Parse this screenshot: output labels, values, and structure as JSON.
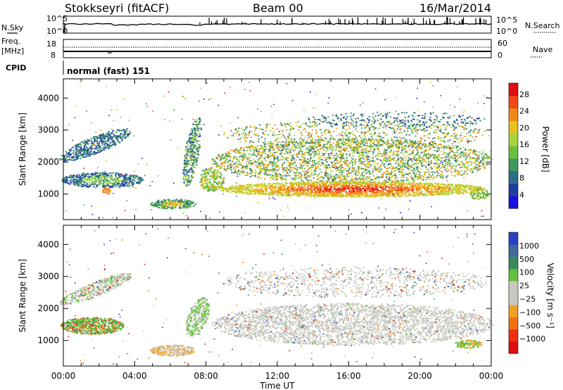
{
  "header": {
    "station": "Stokkseyri (fitACF)",
    "beam": "Beam 00",
    "date": "16/Mar/2014"
  },
  "strips": {
    "nsky": {
      "label": "N.Sky",
      "left_ticks": [
        "10^5",
        "10^0"
      ],
      "right_ticks": [
        "10^5",
        "10^0"
      ],
      "right_label": "N.Search"
    },
    "freq": {
      "label_top": "Freq.",
      "label_unit": "[MHz]",
      "left_ticks": [
        "8",
        "18"
      ],
      "right_ticks": [
        "60",
        "0"
      ],
      "right_label": "Nave"
    },
    "cpid": {
      "label": "CPID",
      "value": "normal (fast) 151"
    }
  },
  "chart_data": [
    {
      "type": "heatmap",
      "name": "power",
      "ylabel": "Slant Range [km]",
      "yticks": [
        "1000",
        "2000",
        "3000",
        "4000"
      ],
      "ylim": [
        200,
        4600
      ],
      "xlim_hours": [
        0,
        24
      ],
      "colorbar": {
        "label": "Power [dB]",
        "ticks": [
          "4",
          "8",
          "12",
          "16",
          "20",
          "24",
          "28"
        ],
        "colors": [
          "#1a10e0",
          "#1f3fa0",
          "#2f6e8a",
          "#3e9a5a",
          "#6abf3c",
          "#a8d23a",
          "#e6c11e",
          "#f08a17",
          "#f04a12",
          "#e01010"
        ]
      }
    },
    {
      "type": "heatmap",
      "name": "velocity",
      "ylabel": "Slant Range [km]",
      "yticks": [
        "1000",
        "2000",
        "3000",
        "4000"
      ],
      "ylim": [
        200,
        4600
      ],
      "xlim_hours": [
        0,
        24
      ],
      "colorbar": {
        "label": "Velocity [m s⁻¹]",
        "ticks": [
          "1000",
          "500",
          "100",
          "25",
          "−25",
          "−100",
          "−500",
          "−1000"
        ],
        "colors": [
          "#2b3fc4",
          "#3f6a9a",
          "#3a8a5a",
          "#62c03a",
          "#c8c8c0",
          "#c8c8c0",
          "#f0a020",
          "#f07010",
          "#f03010",
          "#e01010"
        ]
      }
    }
  ],
  "xaxis": {
    "ticks": [
      "00:00",
      "04:00",
      "08:00",
      "12:00",
      "16:00",
      "20:00",
      "00:00"
    ],
    "label": "Time UT"
  }
}
